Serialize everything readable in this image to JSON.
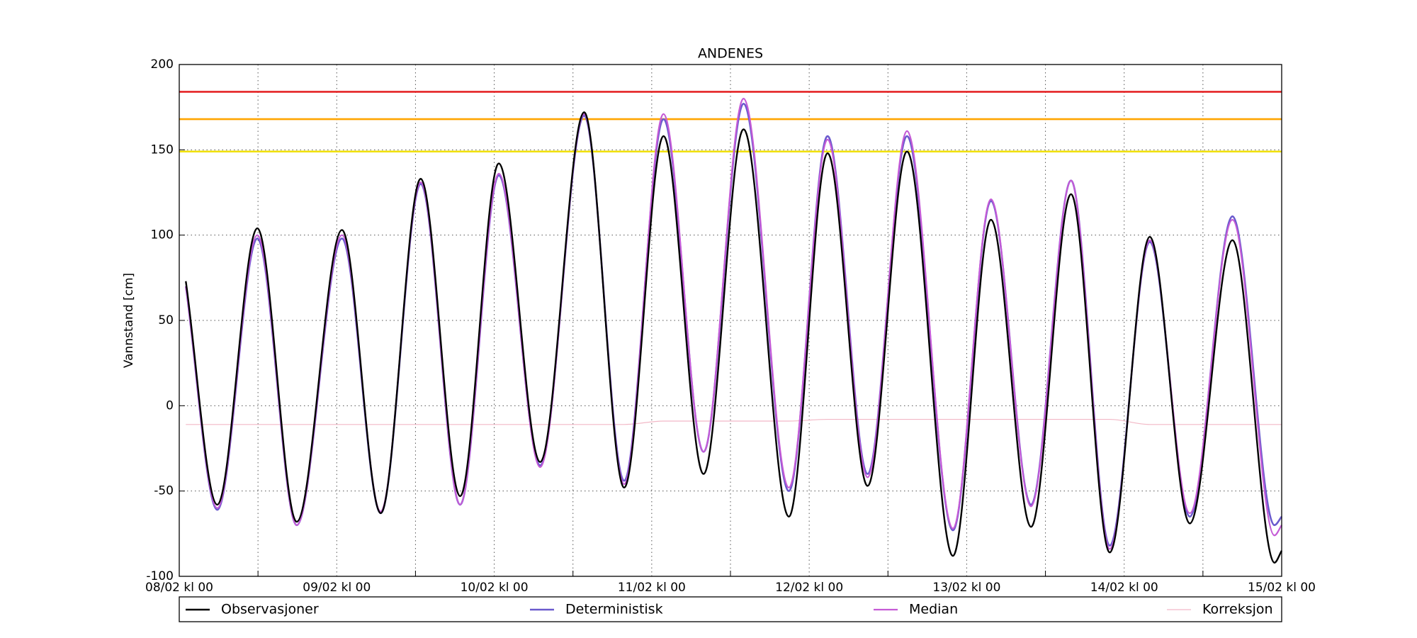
{
  "chart_data": {
    "type": "line",
    "title": "ANDENES",
    "y_label": "Vannstand [cm]",
    "x": [
      1,
      5.8,
      11.9,
      17.9,
      24.8,
      30.7,
      36.8,
      42.8,
      48.7,
      55,
      61.7,
      67.8,
      73.8,
      79.9,
      86,
      92.9,
      98.8,
      104.9,
      110.9,
      117.9,
      123.7,
      129.8,
      135.9,
      141.8,
      147.9,
      154,
      160.5,
      166.9,
      168
    ],
    "series": [
      {
        "name": "Observasjoner",
        "color": "#000000",
        "width": 2.4,
        "values": [
          73,
          -58,
          104,
          -68,
          103,
          -63,
          133,
          -53,
          142,
          -33,
          172,
          -48,
          158,
          -40,
          162,
          -65,
          148,
          -47,
          149,
          -88,
          109,
          -71,
          124,
          -86,
          99,
          -69,
          97,
          -92,
          -85
        ]
      },
      {
        "name": "Deterministisk",
        "color": "#6a5acd",
        "width": 2.6,
        "values": [
          70,
          -61,
          98,
          -70,
          98,
          -63,
          130,
          -58,
          135,
          -35,
          170,
          -44,
          168,
          -27,
          177,
          -50,
          158,
          -40,
          158,
          -73,
          120,
          -58,
          132,
          -82,
          96,
          -65,
          111,
          -70,
          -65
        ]
      },
      {
        "name": "Median",
        "color": "#c55bd6",
        "width": 2.2,
        "values": [
          70,
          -60,
          100,
          -70,
          100,
          -62,
          131,
          -58,
          136,
          -36,
          171,
          -46,
          171,
          -27,
          180,
          -48,
          156,
          -42,
          161,
          -72,
          121,
          -59,
          132,
          -84,
          97,
          -63,
          109,
          -76,
          -70
        ]
      },
      {
        "name": "Korreksjon",
        "color": "#f2b8c6",
        "width": 1.2,
        "values": [
          -11,
          -11,
          -11,
          -11,
          -11,
          -11,
          -11,
          -11,
          -11,
          -11,
          -11,
          -11,
          -9,
          -9,
          -9,
          -9,
          -8,
          -8,
          -8,
          -8,
          -8,
          -8,
          -8,
          -8,
          -11,
          -11,
          -11,
          -11,
          -11
        ]
      }
    ],
    "thresholds": [
      {
        "value": 184,
        "color": "#e41a1c"
      },
      {
        "value": 168,
        "color": "#ffa500"
      },
      {
        "value": 149,
        "color": "#f0e000"
      }
    ],
    "xlim": [
      0,
      168
    ],
    "ylim": [
      -100,
      200
    ],
    "xticks": [
      {
        "value": 0,
        "label": "08/02 kl 00"
      },
      {
        "value": 24,
        "label": "09/02 kl 00"
      },
      {
        "value": 48,
        "label": "10/02 kl 00"
      },
      {
        "value": 72,
        "label": "11/02 kl 00"
      },
      {
        "value": 96,
        "label": "12/02 kl 00"
      },
      {
        "value": 120,
        "label": "13/02 kl 00"
      },
      {
        "value": 144,
        "label": "14/02 kl 00"
      },
      {
        "value": 168,
        "label": "15/02 kl 00"
      }
    ],
    "xminorticks": [
      12,
      36,
      60,
      84,
      108,
      132,
      156
    ],
    "yticks": [
      -100,
      -50,
      0,
      50,
      100,
      150,
      200
    ],
    "grid": true,
    "legend": "bottom"
  }
}
